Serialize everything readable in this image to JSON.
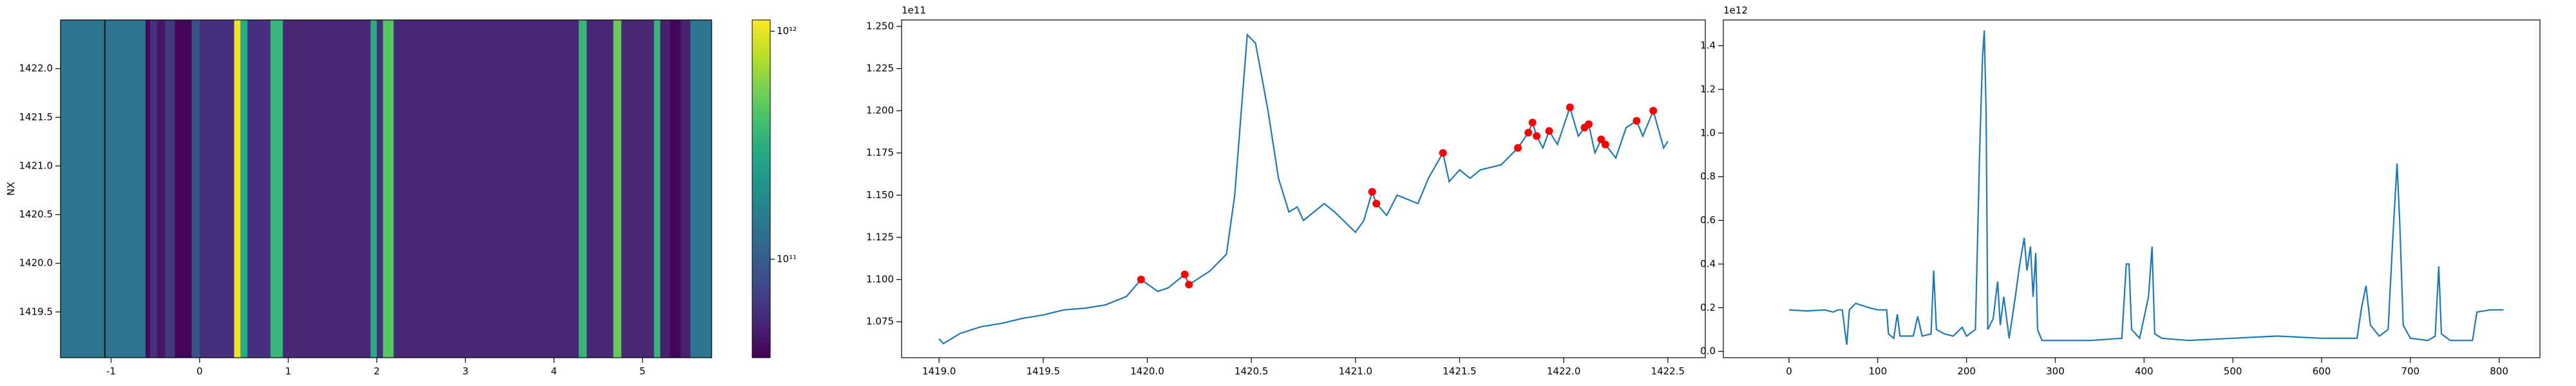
{
  "chart_data": [
    {
      "type": "heatmap",
      "ylabel": "NX",
      "colormap": "viridis",
      "color_scale": "log",
      "x_edges": [
        -1.57,
        -0.61,
        -0.56,
        -0.48,
        -0.39,
        -0.28,
        -0.09,
        0.0,
        0.39,
        0.46,
        0.54,
        0.8,
        0.94,
        1.93,
        2.0,
        2.07,
        2.19,
        4.28,
        4.37,
        4.67,
        4.76,
        5.13,
        5.2,
        5.31,
        5.43,
        5.54,
        5.78
      ],
      "values": [
        140000000000.0,
        40000000000.0,
        60000000000.0,
        45000000000.0,
        65000000000.0,
        38000000000.0,
        90000000000.0,
        60000000000.0,
        1050000000000.0,
        300000000000.0,
        60000000000.0,
        350000000000.0,
        55000000000.0,
        300000000000.0,
        60000000000.0,
        450000000000.0,
        55000000000.0,
        350000000000.0,
        55000000000.0,
        500000000000.0,
        55000000000.0,
        350000000000.0,
        50000000000.0,
        38000000000.0,
        50000000000.0,
        140000000000.0
      ],
      "vline_x": -1.07,
      "xlim": [
        -1.57,
        5.78
      ],
      "ylim": [
        1419.03,
        1422.5
      ],
      "xticks": [
        -1,
        0,
        1,
        2,
        3,
        4,
        5
      ],
      "yticks": [
        1419.5,
        {
          "value": 1420.0,
          "label": "1420.0"
        },
        1420.5,
        {
          "value": 1421.0,
          "label": "1421.0"
        },
        1421.5,
        {
          "value": 1422.0,
          "label": "1422.0"
        }
      ],
      "clim": [
        37000000000.0,
        1120000000000.0
      ],
      "cticks": [
        {
          "value": 100000000000.0,
          "label": "10¹¹"
        },
        {
          "value": 1000000000000.0,
          "label": "10¹²"
        }
      ]
    },
    {
      "type": "line",
      "offset_label": "1e11",
      "series": [
        {
          "color": "#1f77b4",
          "style": "line",
          "x": [
            1419.0,
            1419.02,
            1419.1,
            1419.2,
            1419.3,
            1419.4,
            1419.5,
            1419.6,
            1419.7,
            1419.8,
            1419.9,
            1419.97,
            1420.05,
            1420.1,
            1420.18,
            1420.2,
            1420.3,
            1420.38,
            1420.42,
            1420.48,
            1420.52,
            1420.58,
            1420.63,
            1420.68,
            1420.72,
            1420.75,
            1420.85,
            1420.9,
            1421.0,
            1421.04,
            1421.08,
            1421.1,
            1421.15,
            1421.2,
            1421.3,
            1421.35,
            1421.42,
            1421.45,
            1421.5,
            1421.55,
            1421.6,
            1421.7,
            1421.78,
            1421.83,
            1421.85,
            1421.87,
            1421.9,
            1421.93,
            1421.97,
            1422.03,
            1422.07,
            1422.1,
            1422.12,
            1422.15,
            1422.18,
            1422.2,
            1422.25,
            1422.3,
            1422.35,
            1422.38,
            1422.43,
            1422.48,
            1422.5
          ],
          "values": [
            1.065,
            1.062,
            1.068,
            1.072,
            1.074,
            1.077,
            1.079,
            1.082,
            1.083,
            1.085,
            1.09,
            1.1,
            1.093,
            1.095,
            1.103,
            1.097,
            1.105,
            1.115,
            1.15,
            1.245,
            1.24,
            1.2,
            1.16,
            1.14,
            1.143,
            1.135,
            1.145,
            1.14,
            1.128,
            1.135,
            1.152,
            1.145,
            1.138,
            1.15,
            1.145,
            1.16,
            1.175,
            1.158,
            1.165,
            1.16,
            1.165,
            1.168,
            1.178,
            1.187,
            1.193,
            1.185,
            1.178,
            1.188,
            1.18,
            1.202,
            1.185,
            1.19,
            1.192,
            1.175,
            1.183,
            1.18,
            1.172,
            1.19,
            1.194,
            1.185,
            1.2,
            1.178,
            1.182
          ]
        },
        {
          "color": "#ff0000",
          "style": "points",
          "x": [
            1419.97,
            1420.18,
            1420.2,
            1421.08,
            1421.1,
            1421.42,
            1421.78,
            1421.83,
            1421.85,
            1421.87,
            1421.93,
            1422.03,
            1422.1,
            1422.12,
            1422.18,
            1422.2,
            1422.35,
            1422.43
          ],
          "values": [
            1.1,
            1.103,
            1.097,
            1.152,
            1.145,
            1.175,
            1.178,
            1.187,
            1.193,
            1.185,
            1.188,
            1.202,
            1.19,
            1.192,
            1.183,
            1.18,
            1.194,
            1.2
          ]
        }
      ],
      "xlim": [
        1418.82,
        1422.68
      ],
      "ylim": [
        1.0537,
        1.2538
      ],
      "xticks": [
        {
          "value": 1419.0,
          "label": "1419.0"
        },
        1419.5,
        {
          "value": 1420.0,
          "label": "1420.0"
        },
        1420.5,
        {
          "value": 1421.0,
          "label": "1421.0"
        },
        1421.5,
        {
          "value": 1422.0,
          "label": "1422.0"
        },
        1422.5
      ],
      "yticks": [
        1.075,
        {
          "value": 1.1,
          "label": "1.100"
        },
        1.125,
        {
          "value": 1.15,
          "label": "1.150"
        },
        1.175,
        {
          "value": 1.2,
          "label": "1.200"
        },
        1.225,
        {
          "value": 1.25,
          "label": "1.250"
        }
      ]
    },
    {
      "type": "line",
      "offset_label": "1e12",
      "series": [
        {
          "color": "#1f77b4",
          "style": "line",
          "x": [
            0,
            20,
            40,
            50,
            55,
            60,
            65,
            68,
            75,
            90,
            100,
            110,
            112,
            118,
            122,
            125,
            140,
            145,
            150,
            160,
            163,
            166,
            175,
            185,
            195,
            200,
            210,
            215,
            218,
            220,
            222,
            224,
            230,
            235,
            238,
            242,
            248,
            255,
            260,
            265,
            268,
            272,
            275,
            278,
            280,
            285,
            300,
            340,
            375,
            380,
            383,
            386,
            395,
            405,
            409,
            412,
            420,
            450,
            500,
            550,
            600,
            640,
            645,
            650,
            655,
            665,
            675,
            680,
            685,
            688,
            692,
            700,
            720,
            728,
            732,
            735,
            745,
            760,
            770,
            775,
            790,
            805
          ],
          "values": [
            0.19,
            0.185,
            0.19,
            0.18,
            0.19,
            0.19,
            0.03,
            0.19,
            0.22,
            0.2,
            0.19,
            0.19,
            0.08,
            0.06,
            0.17,
            0.07,
            0.07,
            0.16,
            0.07,
            0.08,
            0.37,
            0.1,
            0.08,
            0.07,
            0.11,
            0.07,
            0.1,
            0.95,
            1.35,
            1.47,
            1.1,
            0.1,
            0.15,
            0.32,
            0.12,
            0.25,
            0.06,
            0.25,
            0.4,
            0.52,
            0.37,
            0.48,
            0.25,
            0.45,
            0.1,
            0.05,
            0.05,
            0.05,
            0.06,
            0.4,
            0.4,
            0.1,
            0.06,
            0.25,
            0.48,
            0.08,
            0.06,
            0.05,
            0.06,
            0.07,
            0.06,
            0.06,
            0.2,
            0.3,
            0.12,
            0.07,
            0.1,
            0.5,
            0.86,
            0.6,
            0.12,
            0.06,
            0.05,
            0.07,
            0.39,
            0.08,
            0.05,
            0.05,
            0.05,
            0.18,
            0.19,
            0.19
          ]
        }
      ],
      "xlim": [
        -74,
        846
      ],
      "ylim": [
        -0.029,
        1.518
      ],
      "xticks": [
        0,
        100,
        200,
        300,
        400,
        500,
        600,
        700,
        800
      ],
      "yticks": [
        {
          "value": 0,
          "label": "0.0"
        },
        0.2,
        0.4,
        0.6,
        0.8,
        {
          "value": 1,
          "label": "1.0"
        },
        1.2,
        1.4
      ]
    }
  ]
}
